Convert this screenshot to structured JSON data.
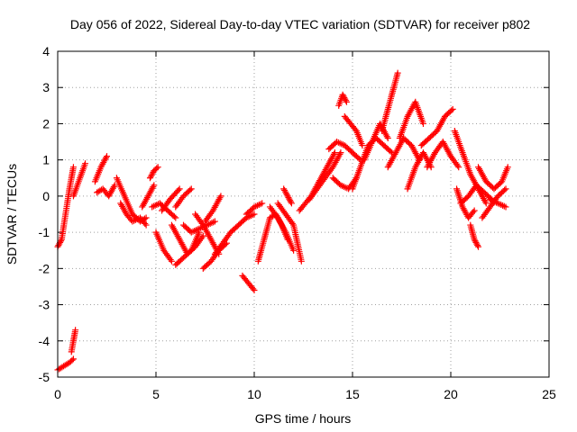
{
  "chart_data": {
    "type": "scatter",
    "title": "Day 056 of 2022, Sidereal Day-to-day VTEC variation (SDTVAR) for receiver p802",
    "xlabel": "GPS time / hours",
    "ylabel": "SDTVAR / TECUs",
    "xlim": [
      0,
      25
    ],
    "ylim": [
      -5,
      4
    ],
    "xticks": [
      0,
      5,
      10,
      15,
      20,
      25
    ],
    "yticks": [
      -5,
      -4,
      -3,
      -2,
      -1,
      0,
      1,
      2,
      3,
      4
    ],
    "grid": true,
    "marker": "+",
    "series_color": "#ff0000",
    "segments": [
      {
        "x": [
          0.0,
          0.2,
          0.4,
          0.6,
          0.8
        ],
        "y": [
          -1.4,
          -1.2,
          -0.5,
          0.2,
          0.8
        ]
      },
      {
        "x": [
          0.0,
          0.3,
          0.6,
          0.8
        ],
        "y": [
          -4.8,
          -4.7,
          -4.6,
          -4.5
        ]
      },
      {
        "x": [
          0.7,
          0.8,
          0.9
        ],
        "y": [
          -4.3,
          -4.0,
          -3.7
        ]
      },
      {
        "x": [
          0.8,
          1.0,
          1.2,
          1.4
        ],
        "y": [
          0.0,
          0.3,
          0.6,
          0.9
        ]
      },
      {
        "x": [
          1.9,
          2.2,
          2.5
        ],
        "y": [
          0.4,
          0.8,
          1.1
        ]
      },
      {
        "x": [
          2.0,
          2.3,
          2.6,
          2.9
        ],
        "y": [
          0.1,
          0.2,
          0.0,
          0.3
        ]
      },
      {
        "x": [
          3.0,
          3.4,
          3.8,
          4.2,
          4.5
        ],
        "y": [
          0.5,
          0.0,
          -0.5,
          -0.7,
          -0.6
        ]
      },
      {
        "x": [
          3.2,
          3.5,
          3.8,
          4.2,
          4.5
        ],
        "y": [
          -0.2,
          -0.5,
          -0.7,
          -0.6,
          -0.8
        ]
      },
      {
        "x": [
          4.3,
          4.6,
          4.9
        ],
        "y": [
          -0.3,
          0.0,
          0.3
        ]
      },
      {
        "x": [
          4.7,
          4.9,
          5.1
        ],
        "y": [
          0.5,
          0.7,
          0.8
        ]
      },
      {
        "x": [
          4.8,
          5.2,
          5.6,
          6.0
        ],
        "y": [
          -0.3,
          -0.2,
          -0.4,
          -0.6
        ]
      },
      {
        "x": [
          5.0,
          5.4,
          5.8
        ],
        "y": [
          -1.0,
          -1.5,
          -1.8
        ]
      },
      {
        "x": [
          5.3,
          5.7,
          6.2
        ],
        "y": [
          -0.4,
          -0.1,
          0.2
        ]
      },
      {
        "x": [
          5.8,
          6.2,
          6.6,
          7.0,
          7.4
        ],
        "y": [
          -0.8,
          -1.2,
          -1.6,
          -1.4,
          -1.1
        ]
      },
      {
        "x": [
          6.0,
          6.4,
          6.8
        ],
        "y": [
          -0.3,
          0.0,
          0.2
        ]
      },
      {
        "x": [
          6.0,
          6.4,
          6.8,
          7.2
        ],
        "y": [
          -1.9,
          -1.7,
          -1.5,
          -1.0
        ]
      },
      {
        "x": [
          6.4,
          6.8,
          7.2,
          7.6,
          8.0
        ],
        "y": [
          -0.8,
          -1.0,
          -0.9,
          -0.8,
          -0.7
        ]
      },
      {
        "x": [
          7.0,
          7.4,
          7.8,
          8.2
        ],
        "y": [
          -0.5,
          -0.8,
          -1.2,
          -1.6
        ]
      },
      {
        "x": [
          7.4,
          7.8,
          8.2,
          8.6
        ],
        "y": [
          -2.0,
          -1.8,
          -1.5,
          -1.3
        ]
      },
      {
        "x": [
          7.5,
          7.9,
          8.3
        ],
        "y": [
          -0.7,
          -0.4,
          0.0
        ]
      },
      {
        "x": [
          8.0,
          8.4,
          8.8,
          9.2,
          9.6,
          10.0
        ],
        "y": [
          -1.6,
          -1.3,
          -1.0,
          -0.8,
          -0.6,
          -0.5
        ]
      },
      {
        "x": [
          9.4,
          9.7,
          10.0
        ],
        "y": [
          -2.2,
          -2.4,
          -2.6
        ]
      },
      {
        "x": [
          9.6,
          10.0,
          10.4
        ],
        "y": [
          -0.5,
          -0.3,
          -0.2
        ]
      },
      {
        "x": [
          10.2,
          10.5,
          10.8,
          11.1,
          11.4,
          11.7
        ],
        "y": [
          -1.8,
          -1.2,
          -0.6,
          -0.5,
          -0.8,
          -1.2
        ]
      },
      {
        "x": [
          10.8,
          11.2,
          11.6,
          12.0
        ],
        "y": [
          -0.3,
          -0.6,
          -1.0,
          -1.5
        ]
      },
      {
        "x": [
          11.2,
          11.6,
          12.0,
          12.4
        ],
        "y": [
          -0.2,
          -0.5,
          -0.8,
          -1.8
        ]
      },
      {
        "x": [
          11.5,
          11.7,
          11.9
        ],
        "y": [
          0.2,
          0.0,
          -0.2
        ]
      },
      {
        "x": [
          12.3,
          12.6,
          12.9,
          13.2,
          13.5,
          13.8,
          14.1
        ],
        "y": [
          -0.4,
          -0.2,
          0.0,
          0.3,
          0.6,
          0.9,
          1.2
        ]
      },
      {
        "x": [
          12.8,
          13.2,
          13.6,
          14.0,
          14.4
        ],
        "y": [
          -0.1,
          0.2,
          0.5,
          0.8,
          1.2
        ]
      },
      {
        "x": [
          13.8,
          14.2,
          14.6,
          15.0,
          15.4
        ],
        "y": [
          1.3,
          1.5,
          1.4,
          1.2,
          1.0
        ]
      },
      {
        "x": [
          14.0,
          14.4,
          14.8,
          15.2
        ],
        "y": [
          0.5,
          0.3,
          0.2,
          0.5
        ]
      },
      {
        "x": [
          14.3,
          14.5,
          14.7
        ],
        "y": [
          2.5,
          2.8,
          2.6
        ]
      },
      {
        "x": [
          14.6,
          14.9,
          15.2,
          15.5
        ],
        "y": [
          2.2,
          2.0,
          1.8,
          1.4
        ]
      },
      {
        "x": [
          15.0,
          15.4,
          15.8,
          16.2,
          16.6,
          17.0
        ],
        "y": [
          0.2,
          0.8,
          1.4,
          1.6,
          1.4,
          1.2
        ]
      },
      {
        "x": [
          15.6,
          16.0,
          16.4,
          16.8
        ],
        "y": [
          1.0,
          1.5,
          2.0,
          1.6
        ]
      },
      {
        "x": [
          16.5,
          16.8,
          17.1,
          17.3
        ],
        "y": [
          1.8,
          2.4,
          3.0,
          3.4
        ]
      },
      {
        "x": [
          16.8,
          17.2,
          17.6,
          18.0,
          18.4
        ],
        "y": [
          0.8,
          1.2,
          1.6,
          1.4,
          1.0
        ]
      },
      {
        "x": [
          17.4,
          17.8,
          18.2,
          18.6
        ],
        "y": [
          1.6,
          2.2,
          2.6,
          2.0
        ]
      },
      {
        "x": [
          17.8,
          18.2,
          18.6,
          19.0
        ],
        "y": [
          0.2,
          0.8,
          1.2,
          0.8
        ]
      },
      {
        "x": [
          18.5,
          18.9,
          19.3,
          19.7,
          20.1
        ],
        "y": [
          1.4,
          1.6,
          1.8,
          2.2,
          2.4
        ]
      },
      {
        "x": [
          18.8,
          19.2,
          19.6,
          20.0,
          20.4
        ],
        "y": [
          0.8,
          1.2,
          1.5,
          1.1,
          0.8
        ]
      },
      {
        "x": [
          20.2,
          20.6,
          21.0,
          21.4,
          21.8
        ],
        "y": [
          1.8,
          1.2,
          0.6,
          0.2,
          -0.2
        ]
      },
      {
        "x": [
          20.3,
          20.6,
          20.9,
          21.2
        ],
        "y": [
          0.2,
          -0.3,
          -0.6,
          -0.4
        ]
      },
      {
        "x": [
          20.5,
          20.9,
          21.3,
          21.7,
          22.1
        ],
        "y": [
          -0.2,
          0.0,
          0.3,
          0.1,
          -0.1
        ]
      },
      {
        "x": [
          21.0,
          21.2,
          21.4
        ],
        "y": [
          -0.8,
          -1.2,
          -1.4
        ]
      },
      {
        "x": [
          21.4,
          21.8,
          22.2,
          22.6,
          22.9
        ],
        "y": [
          0.8,
          0.4,
          0.2,
          0.4,
          0.8
        ]
      },
      {
        "x": [
          21.6,
          22.0,
          22.4,
          22.8
        ],
        "y": [
          -0.6,
          -0.3,
          0.0,
          0.2
        ]
      },
      {
        "x": [
          22.0,
          22.4,
          22.8
        ],
        "y": [
          -0.1,
          -0.2,
          -0.3
        ]
      }
    ]
  }
}
